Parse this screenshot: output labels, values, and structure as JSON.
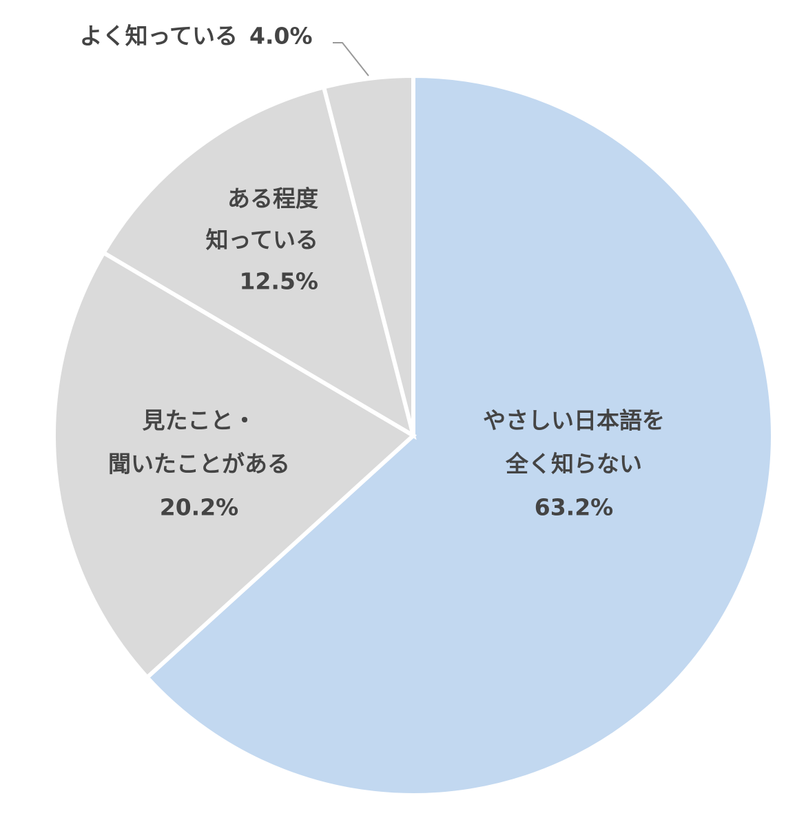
{
  "chart_data": {
    "type": "pie",
    "categories": [
      [
        "やさしい日本語を",
        "全く知らない"
      ],
      [
        "見たこと・",
        "聞いたことがある"
      ],
      [
        "ある程度",
        "知っている"
      ],
      [
        "よく知っている"
      ]
    ],
    "values": [
      63.2,
      20.2,
      12.5,
      4.0
    ],
    "value_labels": [
      "63.2%",
      "20.2%",
      "12.5%",
      "4.0%"
    ],
    "colors": [
      "#c2d8f0",
      "#dadada",
      "#dadada",
      "#dadada"
    ]
  }
}
